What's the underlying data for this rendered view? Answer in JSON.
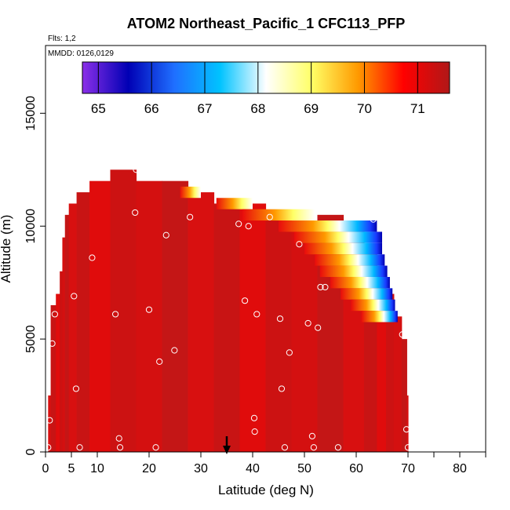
{
  "chart_data": {
    "type": "heatmap",
    "title": "ATOM2 Northeast_Pacific_1 CFC113_PFP",
    "notes": [
      "Flts: 1,2",
      "MMDD: 0126,0129"
    ],
    "xlabel": "Latitude (deg N)",
    "ylabel": "Altitude (m)",
    "xlim": [
      0,
      85
    ],
    "ylim": [
      0,
      18000
    ],
    "x_ticks": [
      0,
      5,
      10,
      20,
      30,
      40,
      50,
      60,
      70,
      80
    ],
    "y_ticks": [
      0,
      5000,
      10000,
      15000
    ],
    "colorbar": {
      "range": [
        64.7,
        71.6
      ],
      "ticks": [
        65,
        66,
        67,
        68,
        69,
        70,
        71
      ],
      "colors": [
        "#8b2fe8",
        "#0000b4",
        "#1f6fff",
        "#00c3ff",
        "#ffffff",
        "#ffff66",
        "#ff9a00",
        "#ff0000",
        "#b01818"
      ],
      "position": "top, inside plot"
    },
    "arrow_marker_latitude": 35,
    "dominant_value": 71.2,
    "profiles": [
      {
        "lat": 0.5,
        "top": 2500
      },
      {
        "lat": 1.5,
        "top": 6500
      },
      {
        "lat": 2.5,
        "top": 7000
      },
      {
        "lat": 3,
        "top": 8000
      },
      {
        "lat": 3.5,
        "top": 9500
      },
      {
        "lat": 4,
        "top": 10500
      },
      {
        "lat": 5,
        "top": 11000
      },
      {
        "lat": 7,
        "top": 11500
      },
      {
        "lat": 10,
        "top": 12000
      },
      {
        "lat": 15,
        "top": 12500
      },
      {
        "lat": 20,
        "top": 12000
      },
      {
        "lat": 25,
        "top": 12000
      },
      {
        "lat": 30,
        "top": 11500
      },
      {
        "lat": 35,
        "top": 11000
      },
      {
        "lat": 40,
        "top": 11000
      },
      {
        "lat": 45,
        "top": 10500
      },
      {
        "lat": 50,
        "top": 10000
      },
      {
        "lat": 55,
        "top": 10500
      },
      {
        "lat": 60,
        "top": 10000
      },
      {
        "lat": 63,
        "top": 9000
      },
      {
        "lat": 65,
        "top": 8000
      },
      {
        "lat": 66.5,
        "top": 7000
      },
      {
        "lat": 68,
        "top": 6000
      },
      {
        "lat": 69.5,
        "top": 5000
      },
      {
        "lat": 70,
        "top": 2500
      }
    ],
    "gradient_zone": [
      {
        "alt": 11500,
        "lat_start": 26,
        "lat_end": 30
      },
      {
        "alt": 11000,
        "lat_start": 33,
        "lat_end": 40
      },
      {
        "alt": 10500,
        "lat_start": 38,
        "lat_end": 52
      },
      {
        "alt": 10000,
        "lat_start": 45,
        "lat_end": 64
      },
      {
        "alt": 9500,
        "lat_start": 48,
        "lat_end": 65
      },
      {
        "alt": 9000,
        "lat_start": 50,
        "lat_end": 65
      },
      {
        "alt": 8500,
        "lat_start": 52,
        "lat_end": 65.5
      },
      {
        "alt": 8000,
        "lat_start": 53,
        "lat_end": 66
      },
      {
        "alt": 7500,
        "lat_start": 55,
        "lat_end": 66.5
      },
      {
        "alt": 7000,
        "lat_start": 57,
        "lat_end": 67
      },
      {
        "alt": 6500,
        "lat_start": 59,
        "lat_end": 67.5
      },
      {
        "alt": 6000,
        "lat_start": 61,
        "lat_end": 68
      }
    ],
    "samples": [
      {
        "lat": 0.5,
        "alt": 200
      },
      {
        "lat": 0.8,
        "alt": 1400
      },
      {
        "lat": 1.3,
        "alt": 4800
      },
      {
        "lat": 1.8,
        "alt": 6100
      },
      {
        "lat": 2.8,
        "alt": 10300
      },
      {
        "lat": 3.8,
        "alt": 11300
      },
      {
        "lat": 5.2,
        "alt": 11300
      },
      {
        "lat": 5.5,
        "alt": 6900
      },
      {
        "lat": 5.9,
        "alt": 2800
      },
      {
        "lat": 6.6,
        "alt": 200
      },
      {
        "lat": 9,
        "alt": 8600
      },
      {
        "lat": 11.3,
        "alt": 12200
      },
      {
        "lat": 13.5,
        "alt": 6100
      },
      {
        "lat": 14.2,
        "alt": 600
      },
      {
        "lat": 14.4,
        "alt": 200
      },
      {
        "lat": 17.3,
        "alt": 10600
      },
      {
        "lat": 17.5,
        "alt": 12500
      },
      {
        "lat": 20,
        "alt": 6300
      },
      {
        "lat": 21.3,
        "alt": 200
      },
      {
        "lat": 22,
        "alt": 4000
      },
      {
        "lat": 23.3,
        "alt": 9600
      },
      {
        "lat": 24.9,
        "alt": 4500
      },
      {
        "lat": 27.9,
        "alt": 10400
      },
      {
        "lat": 37.3,
        "alt": 10100
      },
      {
        "lat": 38.5,
        "alt": 6700
      },
      {
        "lat": 39.2,
        "alt": 10000
      },
      {
        "lat": 40.3,
        "alt": 1500
      },
      {
        "lat": 40.4,
        "alt": 900
      },
      {
        "lat": 40.8,
        "alt": 6100
      },
      {
        "lat": 43.3,
        "alt": 10400
      },
      {
        "lat": 45.3,
        "alt": 5900
      },
      {
        "lat": 45.6,
        "alt": 2800
      },
      {
        "lat": 46.2,
        "alt": 200
      },
      {
        "lat": 47.1,
        "alt": 4400
      },
      {
        "lat": 49,
        "alt": 9200
      },
      {
        "lat": 50.7,
        "alt": 5700
      },
      {
        "lat": 51.5,
        "alt": 700
      },
      {
        "lat": 51.8,
        "alt": 200
      },
      {
        "lat": 52.6,
        "alt": 5500
      },
      {
        "lat": 53.1,
        "alt": 7300
      },
      {
        "lat": 54,
        "alt": 7300
      },
      {
        "lat": 56.5,
        "alt": 200
      },
      {
        "lat": 63.3,
        "alt": 10300
      },
      {
        "lat": 68.9,
        "alt": 5200
      },
      {
        "lat": 69.7,
        "alt": 1000
      },
      {
        "lat": 70,
        "alt": 200
      }
    ]
  }
}
